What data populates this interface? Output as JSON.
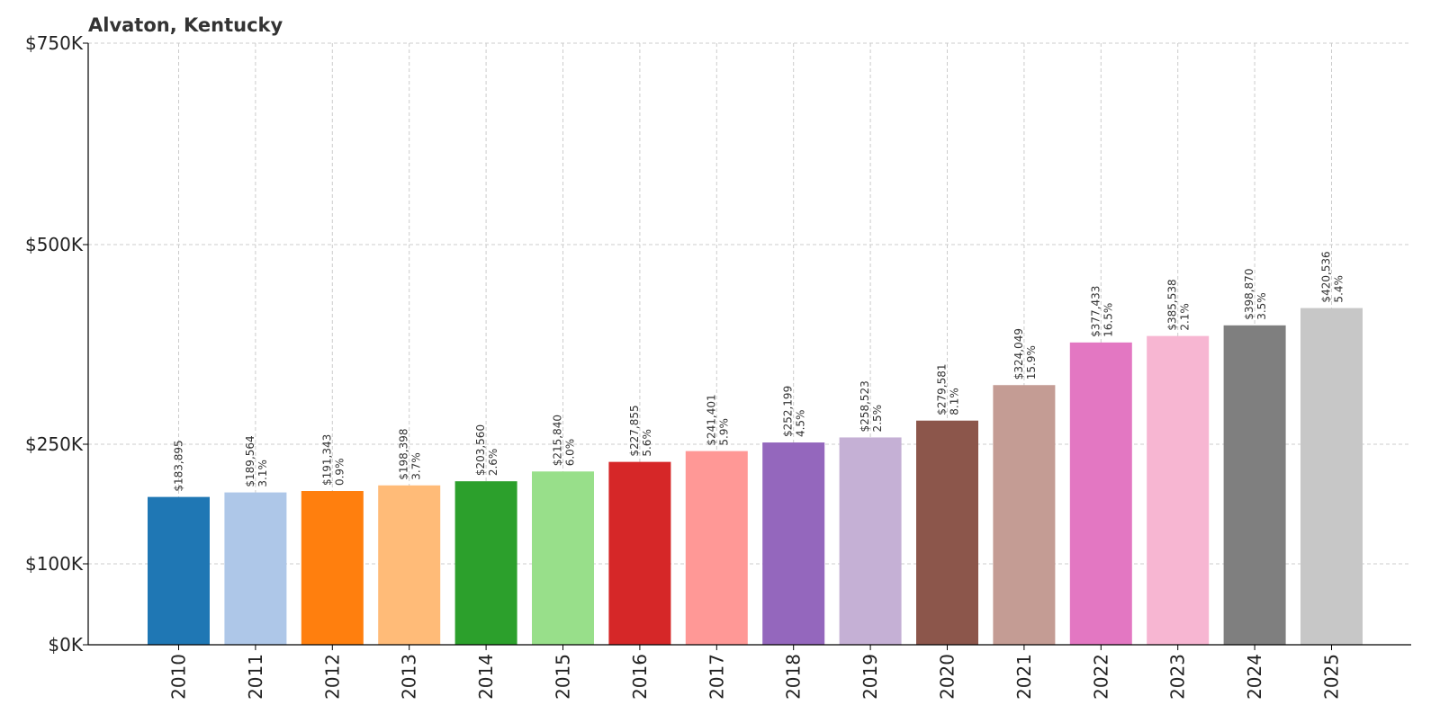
{
  "chart_data": {
    "type": "bar",
    "title": "Alvaton, Kentucky",
    "xlabel": "",
    "ylabel": "",
    "grid": true,
    "y_scale": "piecewise-linear",
    "y_ticks": [
      {
        "value": 0,
        "label": "$0K"
      },
      {
        "value": 100000,
        "label": "$100K"
      },
      {
        "value": 250000,
        "label": "$250K"
      },
      {
        "value": 500000,
        "label": "$500K"
      },
      {
        "value": 750000,
        "label": "$750K"
      }
    ],
    "ylim": [
      0,
      750000
    ],
    "categories": [
      "2010",
      "2011",
      "2012",
      "2013",
      "2014",
      "2015",
      "2016",
      "2017",
      "2018",
      "2019",
      "2020",
      "2021",
      "2022",
      "2023",
      "2024",
      "2025"
    ],
    "values": [
      183895,
      189564,
      191343,
      198398,
      203560,
      215840,
      227855,
      241401,
      252199,
      258523,
      279581,
      324049,
      377433,
      385538,
      398870,
      420536
    ],
    "value_labels": [
      "$183,895",
      "$189,564",
      "$191,343",
      "$198,398",
      "$203,560",
      "$215,840",
      "$227,855",
      "$241,401",
      "$252,199",
      "$258,523",
      "$279,581",
      "$324,049",
      "$377,433",
      "$385,538",
      "$398,870",
      "$420,536"
    ],
    "change_labels": [
      "",
      "3.1%",
      "0.9%",
      "3.7%",
      "2.6%",
      "6.0%",
      "5.6%",
      "5.9%",
      "4.5%",
      "2.5%",
      "8.1%",
      "15.9%",
      "16.5%",
      "2.1%",
      "3.5%",
      "5.4%"
    ],
    "colors": [
      "#1f77b4",
      "#aec7e8",
      "#ff7f0e",
      "#ffbb78",
      "#2ca02c",
      "#98df8a",
      "#d62728",
      "#ff9896",
      "#9467bd",
      "#c5b0d5",
      "#8c564b",
      "#c49c94",
      "#e377c2",
      "#f7b6d2",
      "#7f7f7f",
      "#c7c7c7"
    ]
  }
}
